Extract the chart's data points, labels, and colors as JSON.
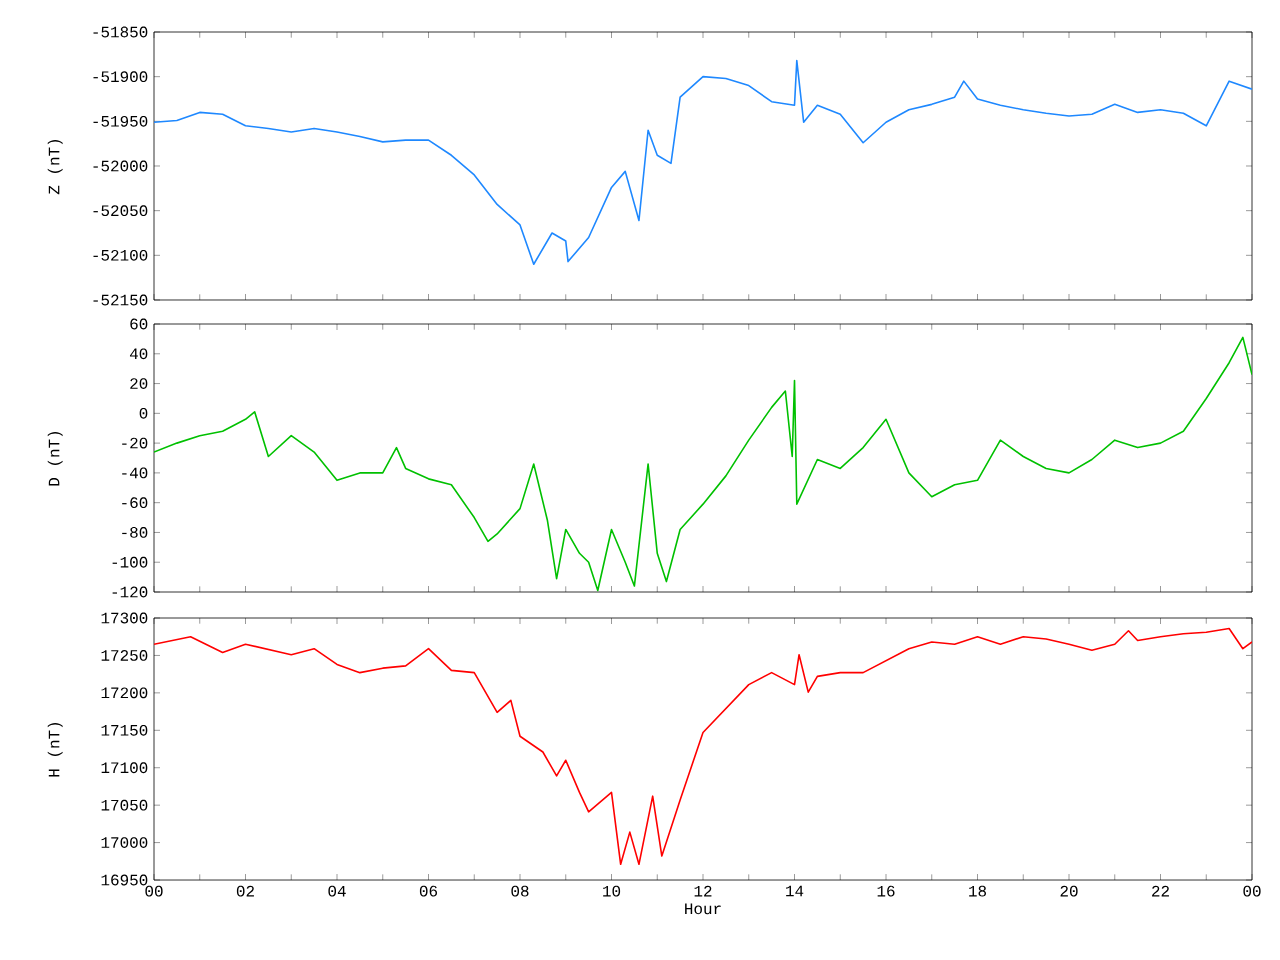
{
  "chart_data": [
    {
      "type": "line",
      "ylabel": "Z (nT)",
      "color": "#1e88ff",
      "tick_labels": "y",
      "x": [
        0,
        0.5,
        1,
        1.5,
        2,
        2.5,
        3,
        3.5,
        4,
        4.5,
        5,
        5.5,
        6,
        6.5,
        7,
        7.5,
        8,
        8.3,
        8.7,
        9,
        9.05,
        9.5,
        10,
        10.3,
        10.6,
        10.8,
        11,
        11.3,
        11.5,
        12,
        12.5,
        13,
        13.5,
        14,
        14.05,
        14.2,
        14.5,
        15,
        15.5,
        16,
        16.5,
        17,
        17.5,
        17.7,
        18,
        18.5,
        19,
        19.5,
        20,
        20.5,
        21,
        21.5,
        22,
        22.5,
        23,
        23.5,
        24
      ],
      "values": [
        -51951,
        -51949,
        -51940,
        -51942,
        -51955,
        -51958,
        -51962,
        -51958,
        -51962,
        -51967,
        -51973,
        -51971,
        -51971,
        -51988,
        -52010,
        -52043,
        -52066,
        -52110,
        -52075,
        -52084,
        -52107,
        -52080,
        -52024,
        -52006,
        -52061,
        -51960,
        -51988,
        -51997,
        -51923,
        -51900,
        -51902,
        -51910,
        -51928,
        -51932,
        -51882,
        -51951,
        -51932,
        -51942,
        -51974,
        -51951,
        -51937,
        -51931,
        -51923,
        -51905,
        -51925,
        -51932,
        -51937,
        -51941,
        -51944,
        -51942,
        -51931,
        -51940,
        -51937,
        -51941,
        -51955,
        -51905,
        -51914
      ],
      "xlim": [
        0,
        24
      ],
      "xticks": [
        {
          "value": 0,
          "label": null
        },
        {
          "value": 2,
          "label": null
        },
        {
          "value": 4,
          "label": null
        },
        {
          "value": 6,
          "label": null
        },
        {
          "value": 8,
          "label": null
        },
        {
          "value": 10,
          "label": null
        },
        {
          "value": 12,
          "label": null
        },
        {
          "value": 14,
          "label": null
        },
        {
          "value": 16,
          "label": null
        },
        {
          "value": 18,
          "label": null
        },
        {
          "value": 20,
          "label": null
        },
        {
          "value": 22,
          "label": null
        },
        {
          "value": 24,
          "label": null
        }
      ],
      "ylim": [
        -52150,
        -51850
      ],
      "yticks": [
        -52150,
        -52100,
        -52050,
        -52000,
        -51950,
        -51900,
        -51850
      ]
    },
    {
      "type": "line",
      "ylabel": "D (nT)",
      "color": "#00c000",
      "tick_labels": "y",
      "x": [
        0,
        0.5,
        1,
        1.5,
        2,
        2.2,
        2.5,
        3,
        3.5,
        4,
        4.5,
        5,
        5.3,
        5.5,
        6,
        6.5,
        7,
        7.3,
        7.5,
        8,
        8.3,
        8.6,
        8.8,
        9,
        9.3,
        9.5,
        9.7,
        10,
        10.3,
        10.5,
        10.8,
        11,
        11.2,
        11.5,
        12,
        12.5,
        13,
        13.5,
        13.8,
        13.95,
        14,
        14.05,
        14.5,
        15,
        15.5,
        16,
        16.5,
        17,
        17.5,
        18,
        18.5,
        19,
        19.5,
        20,
        20.5,
        21,
        21.5,
        22,
        22.5,
        23,
        23.5,
        23.8,
        24
      ],
      "values": [
        -26,
        -20,
        -15,
        -12,
        -4,
        1,
        -29,
        -15,
        -26,
        -45,
        -40,
        -40,
        -23,
        -37,
        -44,
        -48,
        -70,
        -86,
        -81,
        -64,
        -34,
        -72,
        -111,
        -78,
        -94,
        -100,
        -119,
        -78,
        -100,
        -116,
        -34,
        -94,
        -113,
        -78,
        -61,
        -42,
        -18,
        4,
        15,
        -29,
        22,
        -61,
        -31,
        -37,
        -23,
        -4,
        -40,
        -56,
        -48,
        -45,
        -18,
        -29,
        -37,
        -40,
        -31,
        -18,
        -23,
        -20,
        -12,
        10,
        34,
        51,
        26
      ],
      "xlim": [
        0,
        24
      ],
      "xticks": [
        {
          "value": 0,
          "label": null
        },
        {
          "value": 2,
          "label": null
        },
        {
          "value": 4,
          "label": null
        },
        {
          "value": 6,
          "label": null
        },
        {
          "value": 8,
          "label": null
        },
        {
          "value": 10,
          "label": null
        },
        {
          "value": 12,
          "label": null
        },
        {
          "value": 14,
          "label": null
        },
        {
          "value": 16,
          "label": null
        },
        {
          "value": 18,
          "label": null
        },
        {
          "value": 20,
          "label": null
        },
        {
          "value": 22,
          "label": null
        },
        {
          "value": 24,
          "label": null
        }
      ],
      "ylim": [
        -120,
        60
      ],
      "yticks": [
        -120,
        -100,
        -80,
        -60,
        -40,
        -20,
        0,
        20,
        40,
        60
      ]
    },
    {
      "type": "line",
      "ylabel": "H (nT)",
      "xlabel": "Hour",
      "color": "#ff0000",
      "x": [
        0,
        0.8,
        1.5,
        2,
        3,
        3.5,
        4,
        4.5,
        5,
        5.5,
        6,
        6.5,
        7,
        7.5,
        7.8,
        8,
        8.5,
        8.8,
        9,
        9.3,
        9.5,
        10,
        10.2,
        10.4,
        10.6,
        10.9,
        11.1,
        11.5,
        12,
        12.5,
        13,
        13.5,
        14,
        14.1,
        14.3,
        14.5,
        15,
        15.5,
        16,
        16.5,
        17,
        17.5,
        18,
        18.5,
        19,
        19.5,
        20,
        20.5,
        21,
        21.3,
        21.5,
        22,
        22.5,
        23,
        23.5,
        23.8,
        24
      ],
      "values": [
        17265,
        17275,
        17254,
        17265,
        17251,
        17259,
        17238,
        17227,
        17233,
        17236,
        17259,
        17230,
        17227,
        17174,
        17190,
        17142,
        17121,
        17089,
        17110,
        17067,
        17041,
        17067,
        16971,
        17014,
        16971,
        17062,
        16982,
        17057,
        17147,
        17179,
        17211,
        17227,
        17211,
        17251,
        17201,
        17222,
        17227,
        17227,
        17243,
        17259,
        17268,
        17265,
        17275,
        17265,
        17275,
        17272,
        17265,
        17257,
        17265,
        17283,
        17270,
        17275,
        17279,
        17281,
        17286,
        17259,
        17268
      ],
      "xlim": [
        0,
        24
      ],
      "xticks": [
        {
          "value": 0,
          "label": "00"
        },
        {
          "value": 2,
          "label": "02"
        },
        {
          "value": 4,
          "label": "04"
        },
        {
          "value": 6,
          "label": "06"
        },
        {
          "value": 8,
          "label": "08"
        },
        {
          "value": 10,
          "label": "10"
        },
        {
          "value": 12,
          "label": "12"
        },
        {
          "value": 14,
          "label": "14"
        },
        {
          "value": 16,
          "label": "16"
        },
        {
          "value": 18,
          "label": "18"
        },
        {
          "value": 20,
          "label": "20"
        },
        {
          "value": 22,
          "label": "22"
        },
        {
          "value": 24,
          "label": "00"
        }
      ],
      "ylim": [
        16950,
        17300
      ],
      "yticks": [
        16950,
        17000,
        17050,
        17100,
        17150,
        17200,
        17250,
        17300
      ]
    }
  ]
}
